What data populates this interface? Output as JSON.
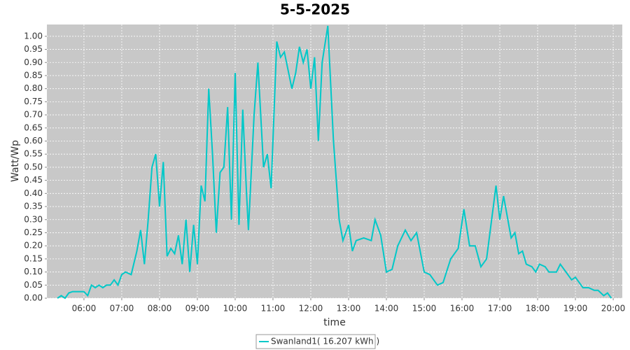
{
  "chart_data": {
    "type": "line",
    "title": "5-5-2025",
    "x_label": "time",
    "y_label": "Watt/Wp",
    "xlim": [
      5.02,
      20.24
    ],
    "ylim": [
      0,
      1.045
    ],
    "xticks": [
      {
        "value": 6,
        "label": "06:00"
      },
      {
        "value": 7,
        "label": "07:00"
      },
      {
        "value": 8,
        "label": "08:00"
      },
      {
        "value": 9,
        "label": "09:00"
      },
      {
        "value": 10,
        "label": "10:00"
      },
      {
        "value": 11,
        "label": "11:00"
      },
      {
        "value": 12,
        "label": "12:00"
      },
      {
        "value": 13,
        "label": "13:00"
      },
      {
        "value": 14,
        "label": "14:00"
      },
      {
        "value": 15,
        "label": "15:00"
      },
      {
        "value": 16,
        "label": "16:00"
      },
      {
        "value": 17,
        "label": "17:00"
      },
      {
        "value": 18,
        "label": "18:00"
      },
      {
        "value": 19,
        "label": "19:00"
      },
      {
        "value": 20,
        "label": "20:00"
      }
    ],
    "yticks": [
      {
        "value": 0,
        "label": "0.00"
      },
      {
        "value": 0.05,
        "label": "0.05"
      },
      {
        "value": 0.1,
        "label": "0.10"
      },
      {
        "value": 0.15,
        "label": "0.15"
      },
      {
        "value": 0.2,
        "label": "0.20"
      },
      {
        "value": 0.25,
        "label": "0.25"
      },
      {
        "value": 0.3,
        "label": "0.30"
      },
      {
        "value": 0.35,
        "label": "0.35"
      },
      {
        "value": 0.4,
        "label": "0.40"
      },
      {
        "value": 0.45,
        "label": "0.45"
      },
      {
        "value": 0.5,
        "label": "0.50"
      },
      {
        "value": 0.55,
        "label": "0.55"
      },
      {
        "value": 0.6,
        "label": "0.60"
      },
      {
        "value": 0.65,
        "label": "0.65"
      },
      {
        "value": 0.7,
        "label": "0.70"
      },
      {
        "value": 0.75,
        "label": "0.75"
      },
      {
        "value": 0.8,
        "label": "0.80"
      },
      {
        "value": 0.85,
        "label": "0.85"
      },
      {
        "value": 0.9,
        "label": "0.90"
      },
      {
        "value": 0.95,
        "label": "0.95"
      },
      {
        "value": 1,
        "label": "1.00"
      }
    ],
    "grid": true,
    "x": [
      5.3,
      5.4,
      5.5,
      5.6,
      5.7,
      6.0,
      6.1,
      6.2,
      6.3,
      6.4,
      6.5,
      6.6,
      6.7,
      6.8,
      6.9,
      7.0,
      7.1,
      7.25,
      7.4,
      7.5,
      7.6,
      7.7,
      7.8,
      7.9,
      8.0,
      8.1,
      8.2,
      8.3,
      8.4,
      8.5,
      8.6,
      8.7,
      8.8,
      8.9,
      9.0,
      9.1,
      9.2,
      9.3,
      9.4,
      9.5,
      9.6,
      9.7,
      9.8,
      9.9,
      10.0,
      10.1,
      10.2,
      10.3,
      10.35,
      10.5,
      10.6,
      10.75,
      10.85,
      10.95,
      11.1,
      11.2,
      11.3,
      11.5,
      11.6,
      11.7,
      11.8,
      11.9,
      12.0,
      12.1,
      12.2,
      12.3,
      12.45,
      12.6,
      12.75,
      12.85,
      13.0,
      13.1,
      13.2,
      13.4,
      13.6,
      13.7,
      13.85,
      14.0,
      14.15,
      14.3,
      14.5,
      14.65,
      14.8,
      15.0,
      15.15,
      15.35,
      15.5,
      15.7,
      15.9,
      16.05,
      16.2,
      16.35,
      16.5,
      16.65,
      16.9,
      17.0,
      17.1,
      17.3,
      17.4,
      17.5,
      17.6,
      17.7,
      17.85,
      17.95,
      18.05,
      18.2,
      18.3,
      18.5,
      18.6,
      18.75,
      18.9,
      19.0,
      19.2,
      19.35,
      19.5,
      19.6,
      19.75,
      19.85,
      19.95
    ],
    "series": [
      {
        "name": "Swanland1( 16.207 kWh )",
        "color": "#00c8c8",
        "values": [
          0,
          0.01,
          0,
          0.02,
          0.025,
          0.025,
          0.01,
          0.05,
          0.04,
          0.05,
          0.04,
          0.05,
          0.05,
          0.07,
          0.05,
          0.09,
          0.1,
          0.09,
          0.18,
          0.26,
          0.13,
          0.3,
          0.5,
          0.55,
          0.35,
          0.52,
          0.16,
          0.19,
          0.17,
          0.24,
          0.13,
          0.3,
          0.1,
          0.28,
          0.13,
          0.43,
          0.37,
          0.8,
          0.55,
          0.25,
          0.48,
          0.5,
          0.73,
          0.3,
          0.86,
          0.28,
          0.72,
          0.4,
          0.26,
          0.7,
          0.9,
          0.5,
          0.55,
          0.42,
          0.98,
          0.92,
          0.94,
          0.8,
          0.86,
          0.96,
          0.9,
          0.95,
          0.8,
          0.92,
          0.6,
          0.9,
          1.04,
          0.6,
          0.3,
          0.22,
          0.28,
          0.18,
          0.22,
          0.23,
          0.22,
          0.3,
          0.24,
          0.1,
          0.11,
          0.2,
          0.26,
          0.22,
          0.25,
          0.1,
          0.09,
          0.05,
          0.06,
          0.15,
          0.19,
          0.34,
          0.2,
          0.2,
          0.12,
          0.15,
          0.43,
          0.3,
          0.39,
          0.23,
          0.25,
          0.17,
          0.18,
          0.13,
          0.12,
          0.1,
          0.13,
          0.12,
          0.1,
          0.1,
          0.13,
          0.1,
          0.07,
          0.08,
          0.04,
          0.04,
          0.03,
          0.03,
          0.01,
          0.02,
          0
        ]
      }
    ]
  }
}
